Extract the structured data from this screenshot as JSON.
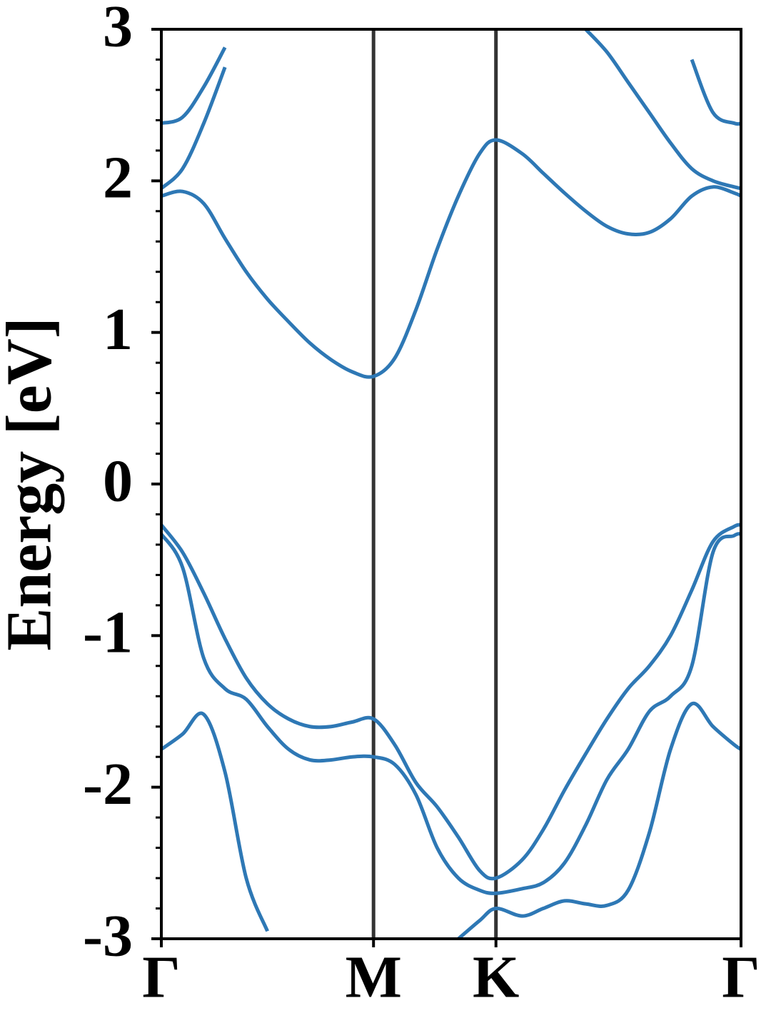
{
  "chart_data": {
    "type": "line",
    "ylabel": "Energy [eV]",
    "x": [
      0,
      0.1,
      0.2,
      0.3,
      0.4,
      0.5,
      0.6,
      0.7,
      0.8,
      0.9,
      1.0,
      1.1,
      1.2,
      1.3,
      1.4,
      1.5,
      1.577,
      1.7,
      1.8,
      1.9,
      2.0,
      2.1,
      2.2,
      2.3,
      2.4,
      2.5,
      2.6,
      2.7,
      2.732
    ],
    "xlim": [
      0,
      2.732
    ],
    "xticks": [
      {
        "value": 0,
        "label": "Γ"
      },
      {
        "value": 1.0,
        "label": "M"
      },
      {
        "value": 1.577,
        "label": "K"
      },
      {
        "value": 2.732,
        "label": "Γ"
      }
    ],
    "ylim": [
      -3,
      3
    ],
    "yticks": [
      -3,
      -2,
      -1,
      0,
      1,
      2,
      3
    ],
    "yminorticks": [
      -2.8,
      -2.6,
      -2.4,
      -2.2,
      -1.8,
      -1.6,
      -1.4,
      -1.2,
      -0.8,
      -0.6,
      -0.4,
      -0.2,
      0.2,
      0.4,
      0.6,
      0.8,
      1.2,
      1.4,
      1.6,
      1.8,
      2.2,
      2.4,
      2.6,
      2.8
    ],
    "symmetry_lines": true,
    "symmetry_line_color": "#333333",
    "series": [
      {
        "color": "#2e78b5",
        "values": [
          1.9,
          1.93,
          1.85,
          1.62,
          1.4,
          1.22,
          1.07,
          0.93,
          0.82,
          0.74,
          0.71,
          0.83,
          1.15,
          1.55,
          1.9,
          2.18,
          2.27,
          2.18,
          2.05,
          1.92,
          1.8,
          1.7,
          1.65,
          1.66,
          1.75,
          1.9,
          1.96,
          1.92,
          1.9
        ]
      },
      {
        "color": "#2e78b5",
        "values": [
          1.95,
          2.08,
          2.38,
          2.75,
          null,
          null,
          null,
          null,
          null,
          null,
          null,
          null,
          null,
          null,
          null,
          null,
          null,
          null,
          null,
          null,
          3.0,
          2.85,
          2.65,
          2.45,
          2.25,
          2.08,
          2.0,
          1.96,
          1.95
        ]
      },
      {
        "color": "#2e78b5",
        "values": [
          2.38,
          2.42,
          2.62,
          2.88,
          null,
          null,
          null,
          null,
          null,
          null,
          null,
          null,
          null,
          null,
          null,
          null,
          null,
          null,
          null,
          null,
          null,
          null,
          null,
          null,
          null,
          2.8,
          2.45,
          2.38,
          2.38
        ]
      },
      {
        "color": "#2e78b5",
        "values": [
          -0.27,
          -0.45,
          -0.72,
          -1.02,
          -1.28,
          -1.45,
          -1.55,
          -1.6,
          -1.6,
          -1.57,
          -1.55,
          -1.72,
          -1.97,
          -2.13,
          -2.33,
          -2.55,
          -2.6,
          -2.48,
          -2.28,
          -2.02,
          -1.78,
          -1.55,
          -1.35,
          -1.2,
          -1.0,
          -0.7,
          -0.38,
          -0.28,
          -0.27
        ]
      },
      {
        "color": "#2e78b5",
        "values": [
          -0.33,
          -0.55,
          -1.15,
          -1.35,
          -1.42,
          -1.6,
          -1.75,
          -1.82,
          -1.82,
          -1.8,
          -1.8,
          -1.85,
          -2.05,
          -2.4,
          -2.6,
          -2.68,
          -2.7,
          -2.67,
          -2.63,
          -2.5,
          -2.25,
          -1.95,
          -1.75,
          -1.5,
          -1.4,
          -1.2,
          -0.45,
          -0.34,
          -0.33
        ]
      },
      {
        "color": "#2e78b5",
        "values": [
          -1.75,
          -1.65,
          -1.52,
          -1.9,
          -2.6,
          -2.95,
          null,
          null,
          null,
          null,
          null,
          null,
          null,
          null,
          -3.0,
          -2.88,
          -2.8,
          -2.85,
          -2.8,
          -2.75,
          -2.77,
          -2.78,
          -2.68,
          -2.3,
          -1.75,
          -1.45,
          -1.6,
          -1.72,
          -1.75
        ]
      }
    ]
  }
}
